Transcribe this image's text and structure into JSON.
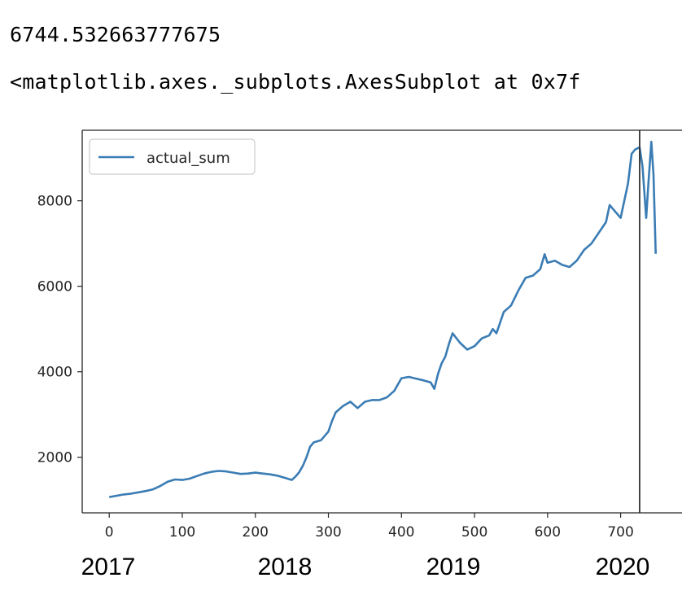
{
  "output": {
    "value_line": "6744.532663777675",
    "repr_line": "<matplotlib.axes._subplots.AxesSubplot at 0x7f"
  },
  "years": [
    "2017",
    "2018",
    "2019",
    "2020"
  ],
  "colors": {
    "series": "#3a7cb4",
    "axis": "#262626",
    "vline": "#333333",
    "legend_border": "#cccccc"
  },
  "chart_data": {
    "type": "line",
    "title": "",
    "xlabel": "",
    "ylabel": "",
    "xlim": [
      -37,
      784
    ],
    "ylim": [
      700,
      9650
    ],
    "xticks": [
      0,
      100,
      200,
      300,
      400,
      500,
      600,
      700
    ],
    "yticks": [
      2000,
      4000,
      6000,
      8000
    ],
    "grid": false,
    "legend": "upper left",
    "vline_x": 726,
    "series": [
      {
        "name": "actual_sum",
        "x": [
          0,
          10,
          20,
          30,
          40,
          50,
          60,
          70,
          80,
          90,
          100,
          110,
          120,
          130,
          140,
          150,
          160,
          170,
          180,
          190,
          200,
          210,
          220,
          230,
          240,
          250,
          255,
          260,
          265,
          270,
          275,
          280,
          290,
          300,
          305,
          310,
          320,
          330,
          340,
          350,
          360,
          370,
          380,
          390,
          400,
          410,
          420,
          430,
          440,
          445,
          450,
          455,
          460,
          465,
          470,
          480,
          490,
          500,
          510,
          520,
          525,
          530,
          540,
          550,
          560,
          570,
          580,
          590,
          596,
          600,
          610,
          620,
          630,
          640,
          650,
          660,
          670,
          680,
          685,
          690,
          700,
          705,
          710,
          715,
          720,
          726,
          730,
          735,
          738,
          742,
          745,
          748
        ],
        "y": [
          1070,
          1100,
          1130,
          1150,
          1180,
          1210,
          1250,
          1330,
          1430,
          1480,
          1470,
          1500,
          1560,
          1620,
          1660,
          1680,
          1670,
          1640,
          1610,
          1620,
          1640,
          1620,
          1600,
          1570,
          1520,
          1470,
          1550,
          1650,
          1800,
          2000,
          2250,
          2350,
          2400,
          2600,
          2850,
          3050,
          3200,
          3300,
          3150,
          3300,
          3340,
          3340,
          3400,
          3550,
          3850,
          3880,
          3840,
          3800,
          3750,
          3600,
          3950,
          4200,
          4350,
          4650,
          4900,
          4680,
          4520,
          4600,
          4780,
          4850,
          5000,
          4900,
          5400,
          5550,
          5900,
          6200,
          6250,
          6400,
          6750,
          6550,
          6600,
          6500,
          6450,
          6600,
          6850,
          7000,
          7250,
          7500,
          7900,
          7800,
          7600,
          8000,
          8400,
          9100,
          9200,
          9250,
          8800,
          7600,
          8400,
          9380,
          8600,
          6760
        ]
      }
    ]
  }
}
